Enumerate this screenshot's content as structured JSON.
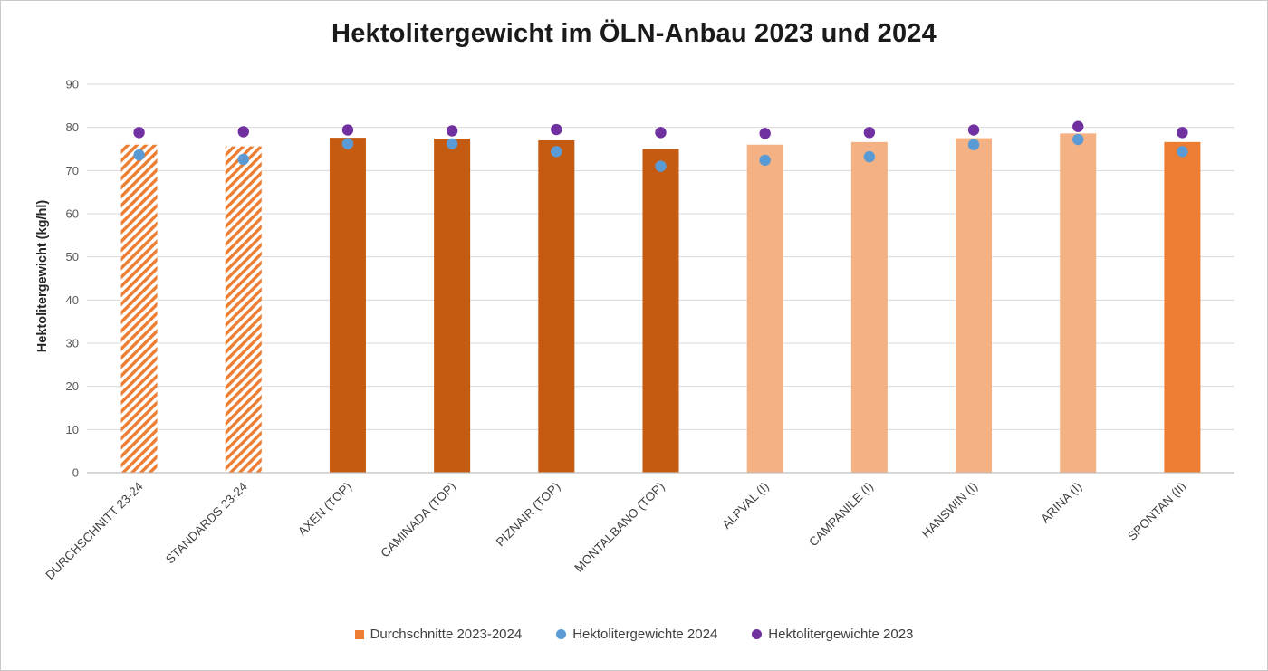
{
  "chart_data": {
    "type": "bar",
    "title": "Hektolitergewicht im ÖLN-Anbau 2023 und 2024",
    "xlabel": "",
    "ylabel": "Hektolitergewicht (kg/hl)",
    "ylim": [
      0,
      90
    ],
    "yticks": [
      0,
      10,
      20,
      30,
      40,
      50,
      60,
      70,
      80,
      90
    ],
    "grid": true,
    "legend_position": "bottom",
    "categories": [
      "DURCHSCHNITT 23-24",
      "STANDARDS 23-24",
      "AXEN (TOP)",
      "CAMINADA (TOP)",
      "PIZNAIR (TOP)",
      "MONTALBANO (TOP)",
      "ALPVAL (I)",
      "CAMPANILE (I)",
      "HANSWIN (I)",
      "ARINA (I)",
      "SPONTAN (II)"
    ],
    "series": [
      {
        "name": "Durchschnitte 2023-2024",
        "type": "bar",
        "values": [
          76.0,
          75.6,
          77.6,
          77.4,
          77.0,
          75.0,
          76.0,
          76.6,
          77.5,
          78.6,
          76.6
        ],
        "bar_styles": [
          "hatched",
          "hatched",
          "dark",
          "dark",
          "dark",
          "dark",
          "light",
          "light",
          "light",
          "light",
          "solid"
        ]
      },
      {
        "name": "Hektolitergewichte 2024",
        "type": "scatter",
        "color": "#5B9BD5",
        "values": [
          73.6,
          72.6,
          76.2,
          76.2,
          74.4,
          71.0,
          72.4,
          73.2,
          76.0,
          77.2,
          74.4
        ]
      },
      {
        "name": "Hektolitergewichte 2023",
        "type": "scatter",
        "color": "#7030A0",
        "values": [
          78.8,
          79.0,
          79.4,
          79.2,
          79.5,
          78.8,
          78.6,
          78.8,
          79.4,
          80.2,
          78.8
        ]
      }
    ],
    "legend": [
      {
        "label": "Durchschnitte 2023-2024",
        "marker": "square",
        "color": "#ED7D31"
      },
      {
        "label": "Hektolitergewichte 2024",
        "marker": "circle",
        "color": "#5B9BD5"
      },
      {
        "label": "Hektolitergewichte 2023",
        "marker": "circle",
        "color": "#7030A0"
      }
    ],
    "colors": {
      "bar_solid": "#ED7D31",
      "bar_dark": "#C55A11",
      "bar_light": "#F4B183",
      "hatch": "#ED7D31",
      "dot_2024": "#5B9BD5",
      "dot_2023": "#7030A0",
      "grid": "#D9D9D9",
      "axis": "#BFBFBF",
      "tick_text": "#595959",
      "label_text": "#404040"
    }
  }
}
